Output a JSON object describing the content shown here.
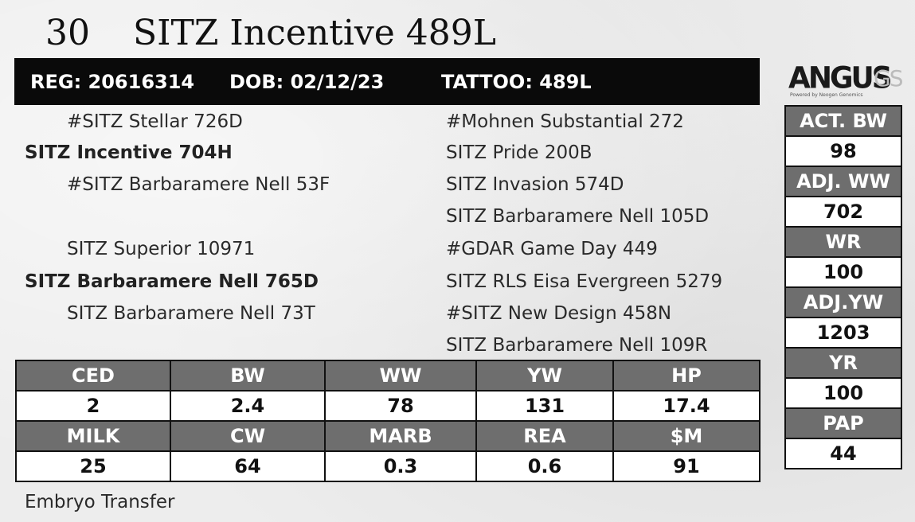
{
  "lot": {
    "number": "30",
    "name": "SITZ Incentive 489L"
  },
  "registration": {
    "reg": "REG: 20616314",
    "dob": "DOB: 02/12/23",
    "tattoo": "TATTOO: 489L"
  },
  "logo": {
    "main": "ANGUS",
    "suffix": "GS",
    "tagline": "Powered by Neogen Genomics"
  },
  "pedigree": {
    "sire": {
      "sire": "#SITZ Stellar 726D",
      "name": "SITZ Incentive 704H",
      "dam": "#SITZ Barbaramere Nell 53F"
    },
    "dam": {
      "sire": "SITZ Superior 10971",
      "name": "SITZ Barbaramere Nell 765D",
      "dam": "SITZ Barbaramere Nell 73T"
    },
    "great_grandparents": [
      "#Mohnen Substantial 272",
      "SITZ Pride 200B",
      "SITZ Invasion 574D",
      "SITZ Barbaramere Nell 105D",
      "#GDAR Game Day 449",
      "SITZ RLS Eisa Evergreen 5279",
      "#SITZ New Design 458N",
      "SITZ Barbaramere Nell 109R"
    ]
  },
  "side_stats": [
    {
      "label": "ACT. BW",
      "value": "98"
    },
    {
      "label": "ADJ. WW",
      "value": "702"
    },
    {
      "label": "WR",
      "value": "100"
    },
    {
      "label": "ADJ.YW",
      "value": "1203"
    },
    {
      "label": "YR",
      "value": "100"
    },
    {
      "label": "PAP",
      "value": "44"
    }
  ],
  "epds": {
    "row1": [
      {
        "label": "CED",
        "value": "2"
      },
      {
        "label": "BW",
        "value": "2.4"
      },
      {
        "label": "WW",
        "value": "78"
      },
      {
        "label": "YW",
        "value": "131"
      },
      {
        "label": "HP",
        "value": "17.4"
      }
    ],
    "row2": [
      {
        "label": "MILK",
        "value": "25"
      },
      {
        "label": "CW",
        "value": "64"
      },
      {
        "label": "MARB",
        "value": "0.3"
      },
      {
        "label": "REA",
        "value": "0.6"
      },
      {
        "label": "$M",
        "value": "91"
      }
    ]
  },
  "footer": "Embryo Transfer"
}
